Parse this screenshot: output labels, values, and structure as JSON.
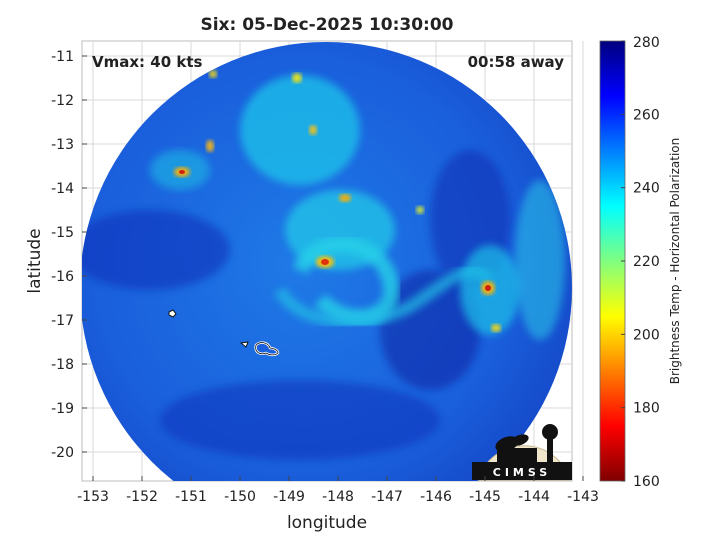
{
  "title": "Six: 05-Dec-2025 10:30:00",
  "vmax_label": "Vmax: 40 kts",
  "time_away": "00:58 away",
  "xlabel": "longitude",
  "ylabel": "latitude",
  "x_ticks": [
    "-153",
    "-152",
    "-151",
    "-150",
    "-149",
    "-148",
    "-147",
    "-146",
    "-145",
    "-144",
    "-143"
  ],
  "y_ticks": [
    "-11",
    "-12",
    "-13",
    "-14",
    "-15",
    "-16",
    "-17",
    "-18",
    "-19",
    "-20"
  ],
  "colorbar": {
    "label": "Brightness Temp - Horizontal Polarization",
    "ticks": [
      "280",
      "260",
      "240",
      "220",
      "200",
      "180",
      "160"
    ],
    "range": [
      160,
      280
    ]
  },
  "logo": {
    "text": "CIMSS"
  },
  "colors": {
    "background_field": "#1a5fdc",
    "deep": "#0a1a9a",
    "cold_cloud": "#1ad4e8",
    "hot_spot": "#e03010"
  }
}
